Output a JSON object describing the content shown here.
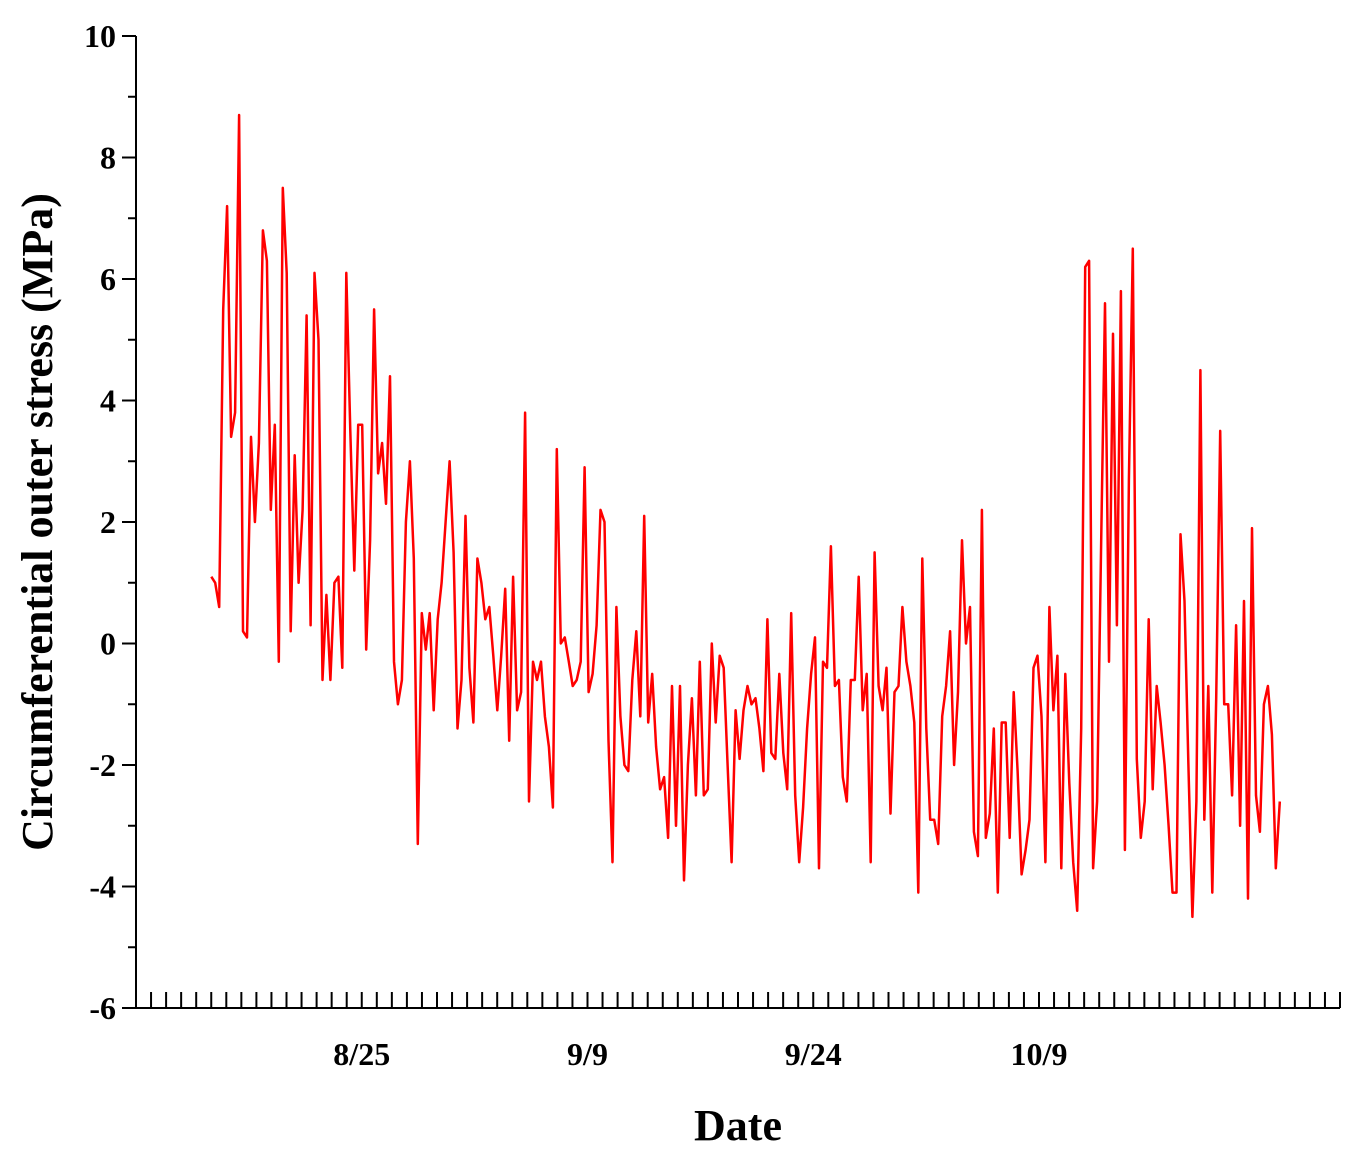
{
  "chart_data": {
    "type": "line",
    "title": "",
    "xlabel": "Date",
    "ylabel": "Circumferential outer stress (MPa)",
    "ylim": [
      -6,
      10
    ],
    "yticks": [
      -6,
      -4,
      -2,
      0,
      2,
      4,
      6,
      8,
      10
    ],
    "xlim": [
      "2019-08-10",
      "2019-10-29"
    ],
    "xticks": [
      {
        "date": "2019-08-25",
        "label": "8/25"
      },
      {
        "date": "2019-09-09",
        "label": "9/9"
      },
      {
        "date": "2019-09-24",
        "label": "9/24"
      },
      {
        "date": "2019-10-09",
        "label": "10/9"
      }
    ],
    "grid": false,
    "series": [
      {
        "color": "#ff0000",
        "start_date": "2019-08-15",
        "end_date": "2019-10-25",
        "values": [
          1.1,
          1.0,
          0.6,
          5.5,
          7.2,
          3.4,
          3.8,
          8.7,
          0.2,
          0.1,
          3.4,
          2.0,
          3.3,
          6.8,
          6.3,
          2.2,
          3.6,
          -0.3,
          7.5,
          6.1,
          0.2,
          3.1,
          1.0,
          2.2,
          5.4,
          0.3,
          6.1,
          5.0,
          -0.6,
          0.8,
          -0.6,
          1.0,
          1.1,
          -0.4,
          6.1,
          3.5,
          1.2,
          3.6,
          3.6,
          -0.1,
          1.7,
          5.5,
          2.8,
          3.3,
          2.3,
          4.4,
          -0.3,
          -1.0,
          -0.6,
          2.0,
          3.0,
          1.4,
          -3.3,
          0.5,
          -0.1,
          0.5,
          -1.1,
          0.4,
          1.0,
          2.0,
          3.0,
          1.5,
          -1.4,
          -0.6,
          2.1,
          -0.4,
          -1.3,
          1.4,
          1.0,
          0.4,
          0.6,
          -0.2,
          -1.1,
          -0.2,
          0.9,
          -1.6,
          1.1,
          -1.1,
          -0.8,
          3.8,
          -2.6,
          -0.3,
          -0.6,
          -0.3,
          -1.2,
          -1.7,
          -2.7,
          3.2,
          0.0,
          0.1,
          -0.3,
          -0.7,
          -0.6,
          -0.3,
          2.9,
          -0.8,
          -0.5,
          0.3,
          2.2,
          2.0,
          -1.6,
          -3.6,
          0.6,
          -1.2,
          -2.0,
          -2.1,
          -0.6,
          0.2,
          -1.2,
          2.1,
          -1.3,
          -0.5,
          -1.7,
          -2.4,
          -2.2,
          -3.2,
          -0.7,
          -3.0,
          -0.7,
          -3.9,
          -2.0,
          -0.9,
          -2.5,
          -0.3,
          -2.5,
          -2.4,
          0.0,
          -1.3,
          -0.2,
          -0.4,
          -2.0,
          -3.6,
          -1.1,
          -1.9,
          -1.1,
          -0.7,
          -1.0,
          -0.9,
          -1.4,
          -2.1,
          0.4,
          -1.8,
          -1.9,
          -0.5,
          -1.8,
          -2.4,
          0.5,
          -2.5,
          -3.6,
          -2.7,
          -1.4,
          -0.5,
          0.1,
          -3.7,
          -0.3,
          -0.4,
          1.6,
          -0.7,
          -0.6,
          -2.2,
          -2.6,
          -0.6,
          -0.6,
          1.1,
          -1.1,
          -0.5,
          -3.6,
          1.5,
          -0.7,
          -1.1,
          -0.4,
          -2.8,
          -0.8,
          -0.7,
          0.6,
          -0.3,
          -0.7,
          -1.3,
          -4.1,
          1.4,
          -1.4,
          -2.9,
          -2.9,
          -3.3,
          -1.2,
          -0.7,
          0.2,
          -2.0,
          -0.8,
          1.7,
          0.0,
          0.6,
          -3.1,
          -3.5,
          2.2,
          -3.2,
          -2.8,
          -1.4,
          -4.1,
          -1.3,
          -1.3,
          -3.2,
          -0.8,
          -2.1,
          -3.8,
          -3.4,
          -2.9,
          -0.4,
          -0.2,
          -1.2,
          -3.6,
          0.6,
          -1.1,
          -0.2,
          -3.7,
          -0.5,
          -2.3,
          -3.6,
          -4.4,
          -1.4,
          6.2,
          6.3,
          -3.7,
          -2.6,
          1.5,
          5.6,
          -0.3,
          5.1,
          0.3,
          5.8,
          -3.4,
          2.7,
          6.5,
          -1.9,
          -3.2,
          -2.6,
          0.4,
          -2.4,
          -0.7,
          -1.3,
          -2.0,
          -3.0,
          -4.1,
          -4.1,
          1.8,
          0.7,
          -2.0,
          -4.5,
          -2.6,
          4.5,
          -2.9,
          -0.7,
          -4.1,
          -0.9,
          3.5,
          -1.0,
          -1.0,
          -2.5,
          0.3,
          -3.0,
          0.7,
          -4.2,
          1.9,
          -2.5,
          -3.1,
          -1.0,
          -0.7,
          -1.5,
          -3.7,
          -2.6
        ]
      }
    ]
  }
}
